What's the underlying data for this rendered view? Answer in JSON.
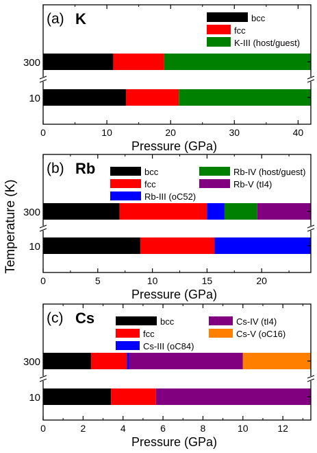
{
  "figure": {
    "shared_ylabel": "Temperature (K)"
  },
  "chart_data": [
    {
      "type": "bar",
      "orientation": "horizontal-stacked",
      "panel_label": "(a)",
      "element": "K",
      "xlabel": "Pressure (GPa)",
      "xlim": [
        0,
        42
      ],
      "xticks": [
        0,
        10,
        20,
        30,
        40
      ],
      "categories": [
        "300",
        "10"
      ],
      "axis_break": true,
      "legend": [
        {
          "name": "bcc",
          "color": "#000000"
        },
        {
          "name": "fcc",
          "color": "#ff0000"
        },
        {
          "name": "K-III (host/guest)",
          "color": "#008000"
        }
      ],
      "rows": [
        {
          "label": "300",
          "segments": [
            {
              "phase": "bcc",
              "from": 0,
              "to": 11,
              "color": "#000000"
            },
            {
              "phase": "fcc",
              "from": 11,
              "to": 19,
              "color": "#ff0000"
            },
            {
              "phase": "K-III (host/guest)",
              "from": 19,
              "to": 42,
              "color": "#008000"
            }
          ]
        },
        {
          "label": "10",
          "segments": [
            {
              "phase": "bcc",
              "from": 0,
              "to": 13,
              "color": "#000000"
            },
            {
              "phase": "fcc",
              "from": 13,
              "to": 21.3,
              "color": "#ff0000"
            },
            {
              "phase": "K-III (host/guest)",
              "from": 21.3,
              "to": 42,
              "color": "#008000"
            }
          ]
        }
      ]
    },
    {
      "type": "bar",
      "orientation": "horizontal-stacked",
      "panel_label": "(b)",
      "element": "Rb",
      "xlabel": "Pressure (GPa)",
      "xlim": [
        0,
        24.5
      ],
      "xticks": [
        0,
        5,
        10,
        15,
        20
      ],
      "categories": [
        "300",
        "10"
      ],
      "axis_break": true,
      "legend": [
        {
          "name": "bcc",
          "color": "#000000"
        },
        {
          "name": "fcc",
          "color": "#ff0000"
        },
        {
          "name": "Rb-III (oC52)",
          "color": "#0000ff"
        },
        {
          "name": "Rb-IV (host/guest)",
          "color": "#008000"
        },
        {
          "name": "Rb-V (tI4)",
          "color": "#800080"
        }
      ],
      "rows": [
        {
          "label": "300",
          "segments": [
            {
              "phase": "bcc",
              "from": 0,
              "to": 7,
              "color": "#000000"
            },
            {
              "phase": "fcc",
              "from": 7,
              "to": 15,
              "color": "#ff0000"
            },
            {
              "phase": "Rb-III (oC52)",
              "from": 15,
              "to": 16.6,
              "color": "#0000ff"
            },
            {
              "phase": "Rb-IV (host/guest)",
              "from": 16.6,
              "to": 19.6,
              "color": "#008000"
            },
            {
              "phase": "Rb-V (tI4)",
              "from": 19.6,
              "to": 24.5,
              "color": "#800080"
            }
          ]
        },
        {
          "label": "10",
          "segments": [
            {
              "phase": "bcc",
              "from": 0,
              "to": 8.9,
              "color": "#000000"
            },
            {
              "phase": "fcc",
              "from": 8.9,
              "to": 15.7,
              "color": "#ff0000"
            },
            {
              "phase": "Rb-III (oC52)",
              "from": 15.7,
              "to": 24.5,
              "color": "#0000ff"
            }
          ]
        }
      ]
    },
    {
      "type": "bar",
      "orientation": "horizontal-stacked",
      "panel_label": "(c)",
      "element": "Cs",
      "xlabel": "Pressure (GPa)",
      "xlim": [
        0,
        13.4
      ],
      "xticks": [
        0,
        2,
        4,
        6,
        8,
        10,
        12
      ],
      "categories": [
        "300",
        "10"
      ],
      "axis_break": true,
      "legend": [
        {
          "name": "bcc",
          "color": "#000000"
        },
        {
          "name": "fcc",
          "color": "#ff0000"
        },
        {
          "name": "Cs-III (oC84)",
          "color": "#0000ff"
        },
        {
          "name": "Cs-IV (tI4)",
          "color": "#800080"
        },
        {
          "name": "Cs-V (oC16)",
          "color": "#ff8000"
        }
      ],
      "rows": [
        {
          "label": "300",
          "segments": [
            {
              "phase": "bcc",
              "from": 0,
              "to": 2.4,
              "color": "#000000"
            },
            {
              "phase": "fcc",
              "from": 2.4,
              "to": 4.2,
              "color": "#ff0000"
            },
            {
              "phase": "Cs-III (oC84)",
              "from": 4.2,
              "to": 4.3,
              "color": "#0000ff"
            },
            {
              "phase": "Cs-IV (tI4)",
              "from": 4.3,
              "to": 10,
              "color": "#800080"
            },
            {
              "phase": "Cs-V (oC16)",
              "from": 10,
              "to": 13.4,
              "color": "#ff8000"
            }
          ]
        },
        {
          "label": "10",
          "segments": [
            {
              "phase": "bcc",
              "from": 0,
              "to": 3.4,
              "color": "#000000"
            },
            {
              "phase": "fcc",
              "from": 3.4,
              "to": 5.65,
              "color": "#ff0000"
            },
            {
              "phase": "Cs-IV (tI4)",
              "from": 5.65,
              "to": 13.4,
              "color": "#800080"
            }
          ]
        }
      ]
    }
  ]
}
